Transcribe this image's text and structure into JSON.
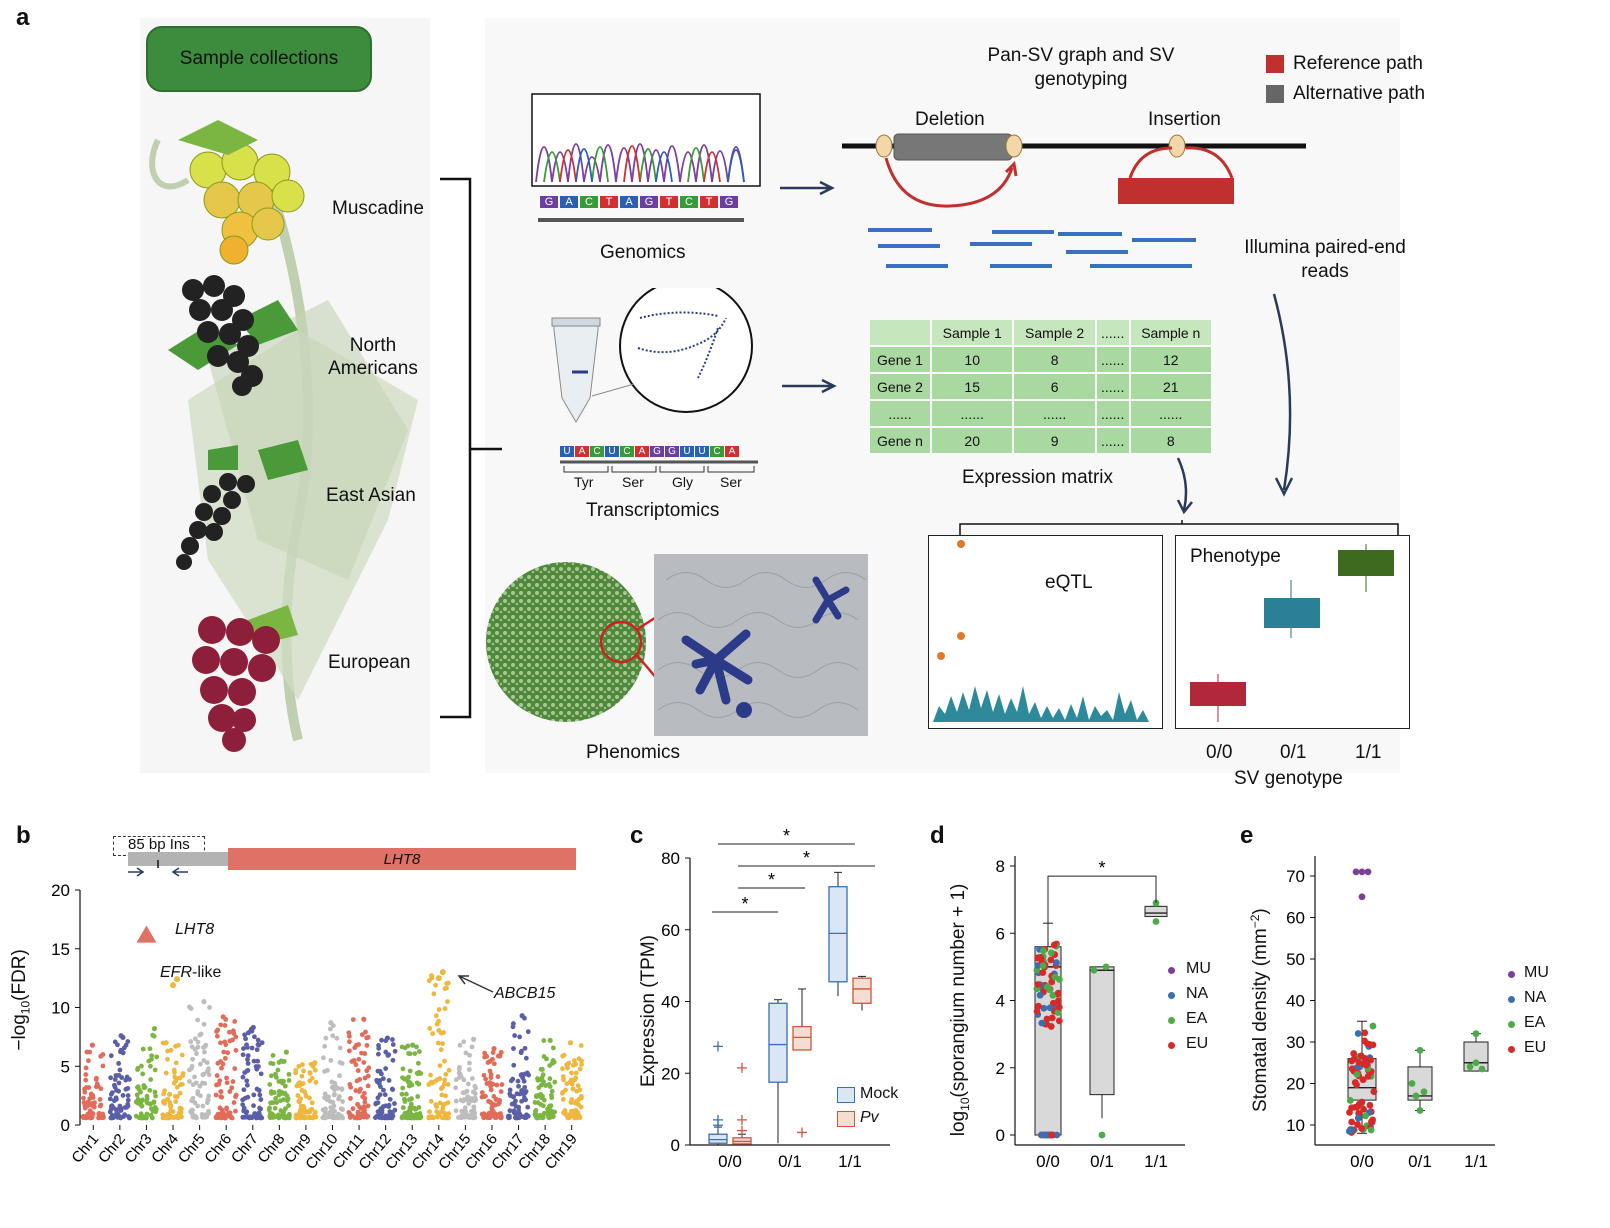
{
  "panel_a": {
    "letter": "a",
    "sample_collections": "Sample collections",
    "groups": [
      "Muscadine",
      "North Americans",
      "East Asian",
      "European"
    ],
    "genomics": "Genomics",
    "dna_letters": [
      "G",
      "A",
      "C",
      "T",
      "A",
      "G",
      "T",
      "C",
      "T",
      "G"
    ],
    "transcriptomics": "Transcriptomics",
    "rna_letters": [
      "U",
      "A",
      "C",
      "U",
      "C",
      "A",
      "G",
      "G",
      "U",
      "U",
      "C",
      "A"
    ],
    "amino_acids": [
      "Tyr",
      "Ser",
      "Gly",
      "Ser"
    ],
    "phenomics": "Phenomics",
    "pan_sv_title": "Pan-SV graph and SV genotyping",
    "legend_reference": "Reference path",
    "legend_alternative": "Alternative path",
    "deletion": "Deletion",
    "insertion": "Insertion",
    "illumina": "Illumina paired-end reads",
    "matrix": {
      "headers": [
        "",
        "Sample 1",
        "Sample 2",
        "......",
        "Sample n"
      ],
      "rows": [
        [
          "Gene 1",
          "10",
          "8",
          "......",
          "12"
        ],
        [
          "Gene 2",
          "15",
          "6",
          "......",
          "21"
        ],
        [
          "......",
          "......",
          "......",
          "......",
          "......"
        ],
        [
          "Gene n",
          "20",
          "9",
          "......",
          "8"
        ]
      ]
    },
    "expression_matrix": "Expression matrix",
    "eqtl": "eQTL",
    "phenotype": "Phenotype",
    "sv_ticks": [
      "0/0",
      "0/1",
      "1/1"
    ],
    "sv_genotype": "SV genotype",
    "colors": {
      "reference": "#c0302f",
      "alternative": "#666666",
      "green": "#3d8b3d"
    }
  },
  "panel_b": {
    "letter": "b",
    "ins_label": "85 bp Ins",
    "gene_label": "LHT8",
    "lht8_label": "LHT8",
    "efr_label": "EFR",
    "efr_suffix": "-like",
    "abcb_label": "ABCB15",
    "ylabel_prefix": "−log",
    "ylabel_sub": "10",
    "ylabel_suffix": "(FDR)"
  },
  "panel_c": {
    "letter": "c",
    "ylabel": "Expression (TPM)",
    "legend": [
      "Mock",
      "Pv"
    ],
    "star": "*"
  },
  "panel_d": {
    "letter": "d",
    "ylabel_prefix": "log",
    "ylabel_sub": "10",
    "ylabel_suffix": "(sporangium number + 1)",
    "star": "*"
  },
  "panel_e": {
    "letter": "e",
    "ylabel_prefix": "Stomatal density (mm",
    "ylabel_sup": "−2",
    "ylabel_suffix": ")"
  },
  "legend_groups": [
    "MU",
    "NA",
    "EA",
    "EU"
  ],
  "group_colors": [
    "#7b3f98",
    "#3a6fb0",
    "#4caa48",
    "#d62a2a"
  ],
  "chart_data": [
    {
      "type": "scatter",
      "panel": "b",
      "title": "",
      "xlabel": "",
      "ylabel": "−log10(FDR)",
      "ylim": [
        0,
        20
      ],
      "yticks": [
        0,
        5,
        10,
        15,
        20
      ],
      "categories": [
        "Chr1",
        "Chr2",
        "Chr3",
        "Chr4",
        "Chr5",
        "Chr6",
        "Chr7",
        "Chr8",
        "Chr9",
        "Chr10",
        "Chr11",
        "Chr12",
        "Chr13",
        "Chr14",
        "Chr15",
        "Chr16",
        "Chr17",
        "Chr18",
        "Chr19"
      ],
      "chr_colors": [
        "#e26b5a",
        "#5a5fa8",
        "#7bb642",
        "#efb73e",
        "#bdbdbd",
        "#e26b5a",
        "#5a5fa8",
        "#7bb642",
        "#efb73e",
        "#bdbdbd",
        "#e26b5a",
        "#5a5fa8",
        "#7bb642",
        "#efb73e",
        "#bdbdbd",
        "#e26b5a",
        "#5a5fa8",
        "#7bb642",
        "#efb73e"
      ],
      "chr_max": [
        6.8,
        7.6,
        8.2,
        7.0,
        10.5,
        9.2,
        8.3,
        6.2,
        5.3,
        8.7,
        9.0,
        7.4,
        6.8,
        12.7,
        7.3,
        6.5,
        9.3,
        7.2,
        7.0
      ],
      "highlights": [
        {
          "label": "LHT8",
          "chr": "Chr3",
          "y": 16.2
        },
        {
          "label": "EFR-like",
          "chr": "Chr4",
          "y": 11.9
        },
        {
          "label": "ABCB15",
          "chr": "Chr14",
          "y": 12.5
        }
      ]
    },
    {
      "type": "box",
      "panel": "c",
      "ylabel": "Expression (TPM)",
      "ylim": [
        0,
        80
      ],
      "yticks": [
        0,
        20,
        40,
        60,
        80
      ],
      "categories": [
        "0/0",
        "0/1",
        "1/1"
      ],
      "series": [
        {
          "name": "Mock",
          "boxes": [
            {
              "min": 0,
              "q1": 0.5,
              "median": 1.5,
              "q3": 3,
              "max": 5,
              "outliers": [
                27.5,
                7,
                5.5
              ]
            },
            {
              "min": 0.5,
              "q1": 17.5,
              "median": 28,
              "q3": 39.5,
              "max": 40.5,
              "outliers": []
            },
            {
              "min": 41.5,
              "q1": 45.5,
              "median": 59,
              "q3": 72,
              "max": 76,
              "outliers": []
            }
          ]
        },
        {
          "name": "Pv",
          "boxes": [
            {
              "min": 0,
              "q1": 0.3,
              "median": 1,
              "q3": 2,
              "max": 3,
              "outliers": [
                21.5,
                7,
                4
              ]
            },
            {
              "min": 26.5,
              "q1": 26.5,
              "median": 30,
              "q3": 33,
              "max": 43.5,
              "outliers": [
                3.5
              ]
            },
            {
              "min": 37.5,
              "q1": 39.5,
              "median": 43.5,
              "q3": 46.5,
              "max": 47,
              "outliers": []
            }
          ]
        }
      ],
      "significance": [
        "0/0 Mock vs 1/1 Mock",
        "0/0 Pv vs 1/1 Pv",
        "0/0 Pv vs 0/1 Pv",
        "0/0 Mock vs 0/1 Mock"
      ]
    },
    {
      "type": "box",
      "panel": "d",
      "ylabel": "log10(sporangium number + 1)",
      "ylim": [
        0,
        8
      ],
      "yticks": [
        0,
        2,
        4,
        6,
        8
      ],
      "categories": [
        "0/0",
        "0/1",
        "1/1"
      ],
      "boxes": [
        {
          "min": 0,
          "q1": 0,
          "median": 5.0,
          "q3": 5.6,
          "max": 6.3
        },
        {
          "min": 0.5,
          "q1": 1.2,
          "median": 4.9,
          "q3": 5.0,
          "max": 5.0,
          "outliers": [
            0
          ]
        },
        {
          "min": 6.5,
          "q1": 6.5,
          "median": 6.6,
          "q3": 6.8,
          "max": 6.8
        }
      ],
      "significance": [
        "0/0 vs 1/1"
      ]
    },
    {
      "type": "box",
      "panel": "e",
      "ylabel": "Stomatal density (mm−2)",
      "ylim": [
        5,
        75
      ],
      "yticks": [
        10,
        20,
        30,
        40,
        50,
        60,
        70
      ],
      "categories": [
        "0/0",
        "0/1",
        "1/1"
      ],
      "boxes": [
        {
          "min": 8,
          "q1": 16,
          "median": 19,
          "q3": 26,
          "max": 35,
          "outliers": [
            71,
            71,
            65
          ]
        },
        {
          "min": 13.5,
          "q1": 16,
          "median": 17,
          "q3": 24,
          "max": 28
        },
        {
          "min": 23,
          "q1": 23,
          "median": 25,
          "q3": 30,
          "max": 32
        }
      ]
    }
  ]
}
